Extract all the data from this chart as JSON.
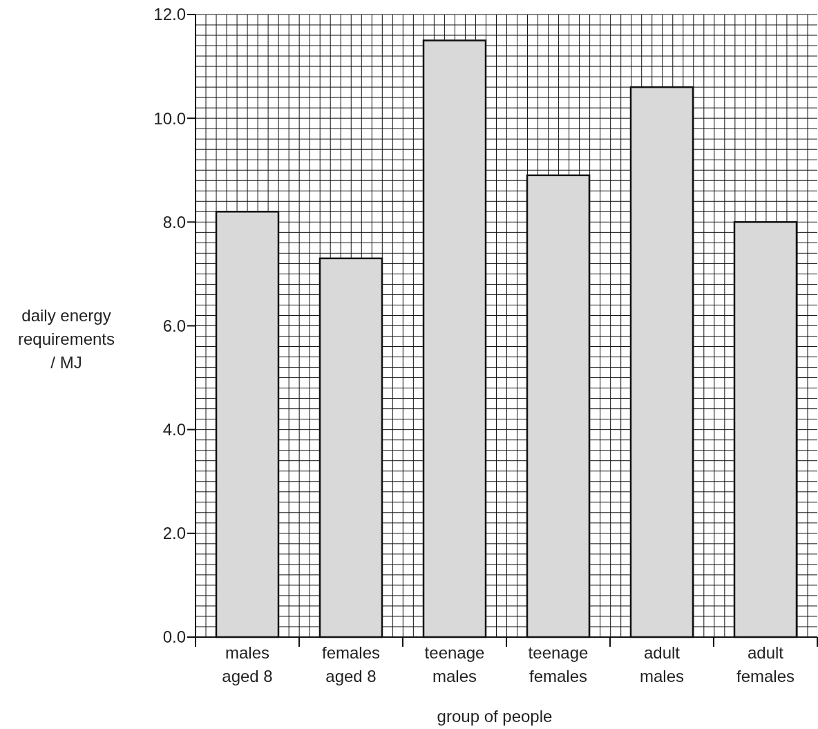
{
  "chart_data": {
    "type": "bar",
    "xlabel": "group of people",
    "ylabel": "daily energy\nrequirements\n/ MJ",
    "categories": [
      "males\naged 8",
      "females\naged 8",
      "teenage\nmales",
      "teenage\nfemales",
      "adult\nmales",
      "adult\nfemales"
    ],
    "values": [
      8.2,
      7.3,
      11.5,
      8.9,
      10.6,
      8.0
    ],
    "color": "#d9d9d9",
    "ylim": [
      0,
      12
    ],
    "yticks": [
      {
        "value": 0,
        "label": "0.0"
      },
      {
        "value": 2,
        "label": "2.0"
      },
      {
        "value": 4,
        "label": "4.0"
      },
      {
        "value": 6,
        "label": "6.0"
      },
      {
        "value": 8,
        "label": "8.0"
      },
      {
        "value": 10,
        "label": "10.0"
      },
      {
        "value": 12,
        "label": "12.0"
      }
    ],
    "grid": true
  }
}
